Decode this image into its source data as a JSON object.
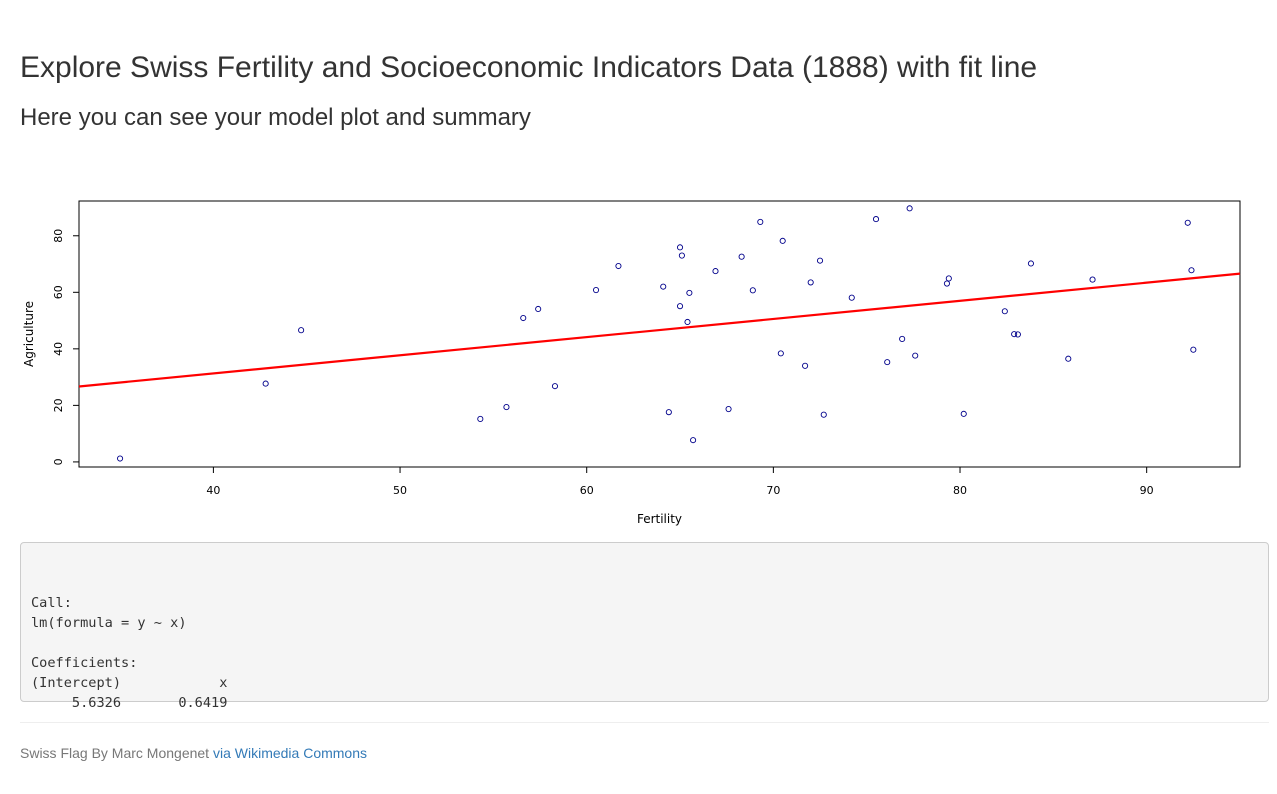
{
  "page": {
    "title": "Explore Swiss Fertility and Socioeconomic Indicators Data (1888) with fit line",
    "subtitle": "Here you can see your model plot and summary"
  },
  "chart_data": {
    "type": "scatter",
    "xlabel": "Fertility",
    "ylabel": "Agriculture",
    "xlim": [
      32.8,
      95.0
    ],
    "ylim": [
      -1.8,
      92.3
    ],
    "xticks": [
      40,
      50,
      60,
      70,
      80,
      90
    ],
    "yticks": [
      0,
      20,
      40,
      60,
      80
    ],
    "point_color": "#00008b",
    "line_color": "#ff0000",
    "fit_line": {
      "intercept": 5.6326,
      "slope": 0.6419
    },
    "points": [
      [
        80.2,
        17.0
      ],
      [
        83.1,
        45.1
      ],
      [
        92.5,
        39.7
      ],
      [
        85.8,
        36.5
      ],
      [
        76.9,
        43.5
      ],
      [
        76.1,
        35.3
      ],
      [
        83.8,
        70.2
      ],
      [
        92.4,
        67.8
      ],
      [
        82.4,
        53.3
      ],
      [
        82.9,
        45.2
      ],
      [
        87.1,
        64.5
      ],
      [
        64.1,
        62.0
      ],
      [
        66.9,
        67.5
      ],
      [
        68.9,
        60.7
      ],
      [
        61.7,
        69.3
      ],
      [
        68.3,
        72.6
      ],
      [
        71.7,
        34.0
      ],
      [
        55.7,
        19.4
      ],
      [
        54.3,
        15.2
      ],
      [
        65.1,
        73.0
      ],
      [
        65.5,
        59.8
      ],
      [
        65.0,
        55.1
      ],
      [
        56.6,
        50.9
      ],
      [
        57.4,
        54.1
      ],
      [
        72.5,
        71.2
      ],
      [
        74.2,
        58.1
      ],
      [
        72.0,
        63.5
      ],
      [
        60.5,
        60.8
      ],
      [
        58.3,
        26.8
      ],
      [
        65.4,
        49.5
      ],
      [
        75.5,
        85.9
      ],
      [
        69.3,
        84.9
      ],
      [
        77.3,
        89.7
      ],
      [
        70.5,
        78.2
      ],
      [
        79.4,
        64.9
      ],
      [
        65.0,
        75.9
      ],
      [
        92.2,
        84.6
      ],
      [
        79.3,
        63.1
      ],
      [
        70.4,
        38.4
      ],
      [
        65.7,
        7.7
      ],
      [
        72.7,
        16.7
      ],
      [
        64.4,
        17.6
      ],
      [
        77.6,
        37.6
      ],
      [
        67.6,
        18.7
      ],
      [
        35.0,
        1.2
      ],
      [
        44.7,
        46.6
      ],
      [
        42.8,
        27.7
      ]
    ]
  },
  "summary": {
    "lines": [
      "",
      "Call:",
      "lm(formula = y ~ x)",
      "",
      "Coefficients:",
      "(Intercept)            x",
      "     5.6326       0.6419"
    ]
  },
  "footer": {
    "text": "Swiss Flag By Marc Mongenet ",
    "link_text": "via Wikimedia Commons"
  }
}
